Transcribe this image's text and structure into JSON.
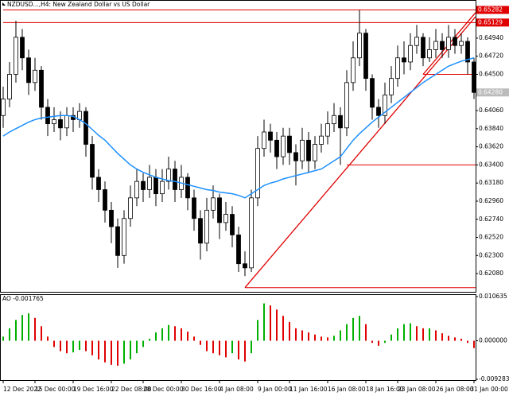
{
  "chart_data": {
    "type": "candlestick",
    "title": "NZDUSD...,H4:  New Zealand Dollar vs US Dollar",
    "categories": [
      "12 Dec 2022",
      null,
      null,
      null,
      null,
      "15 Dec 00:00",
      null,
      null,
      null,
      null,
      null,
      "19 Dec 16:00",
      null,
      null,
      null,
      null,
      null,
      "22 Dec 08:00",
      null,
      null,
      null,
      null,
      "28 Dec 00:00",
      null,
      null,
      null,
      null,
      null,
      "30 Dec 16:00",
      null,
      null,
      null,
      null,
      null,
      "4 Jan 08:00",
      null,
      null,
      null,
      null,
      null,
      "9 Jan 00:00",
      null,
      null,
      null,
      null,
      "11 Jan 16:00",
      null,
      null,
      null,
      null,
      null,
      "16 Jan 08:00",
      null,
      null,
      null,
      null,
      null,
      "18 Jan 16:00",
      null,
      null,
      null,
      null,
      "23 Jan 08:00",
      null,
      null,
      null,
      null,
      null,
      "26 Jan 08:00",
      null,
      null,
      null,
      null,
      null,
      "31 Jan 00:00"
    ],
    "open": [
      0.64,
      0.642,
      0.645,
      0.6495,
      0.647,
      0.644,
      0.6455,
      0.641,
      0.639,
      0.6395,
      0.6385,
      0.64,
      0.6395,
      0.6405,
      0.6365,
      0.6325,
      0.631,
      0.6285,
      0.6265,
      0.623,
      0.6275,
      0.63,
      0.632,
      0.631,
      0.6325,
      0.6305,
      0.632,
      0.6335,
      0.631,
      0.6325,
      0.63,
      0.6275,
      0.6245,
      0.6285,
      0.63,
      0.627,
      0.628,
      0.6255,
      0.622,
      0.6215,
      0.63,
      0.636,
      0.638,
      0.637,
      0.635,
      0.6375,
      0.6355,
      0.6345,
      0.637,
      0.6345,
      0.6365,
      0.6375,
      0.639,
      0.64,
      0.6385,
      0.644,
      0.647,
      0.65,
      0.6445,
      0.641,
      0.64,
      0.6425,
      0.6445,
      0.647,
      0.6465,
      0.6485,
      0.6495,
      0.647,
      0.648,
      0.649,
      0.648,
      0.6495,
      0.6485,
      0.649,
      0.6465
    ],
    "high": [
      0.6435,
      0.6465,
      0.6515,
      0.6505,
      0.648,
      0.647,
      0.646,
      0.642,
      0.641,
      0.6405,
      0.641,
      0.641,
      0.6415,
      0.641,
      0.6375,
      0.6335,
      0.632,
      0.6295,
      0.6275,
      0.6285,
      0.6315,
      0.6335,
      0.633,
      0.634,
      0.6335,
      0.6335,
      0.635,
      0.6345,
      0.634,
      0.633,
      0.631,
      0.6285,
      0.63,
      0.6315,
      0.6305,
      0.6295,
      0.629,
      0.6265,
      0.6235,
      0.631,
      0.6375,
      0.6395,
      0.639,
      0.638,
      0.6385,
      0.6385,
      0.6365,
      0.6385,
      0.638,
      0.6375,
      0.639,
      0.6405,
      0.6415,
      0.641,
      0.6455,
      0.649,
      0.6528,
      0.6505,
      0.645,
      0.642,
      0.644,
      0.646,
      0.6485,
      0.649,
      0.65,
      0.651,
      0.65,
      0.6495,
      0.6505,
      0.65,
      0.651,
      0.6505,
      0.65,
      0.6495,
      0.647
    ],
    "low": [
      0.6385,
      0.641,
      0.644,
      0.6455,
      0.6425,
      0.643,
      0.6395,
      0.6375,
      0.638,
      0.637,
      0.6375,
      0.638,
      0.6385,
      0.635,
      0.631,
      0.6295,
      0.627,
      0.6245,
      0.6215,
      0.622,
      0.6265,
      0.629,
      0.6295,
      0.63,
      0.629,
      0.6295,
      0.631,
      0.6295,
      0.63,
      0.6285,
      0.626,
      0.6225,
      0.6235,
      0.6275,
      0.625,
      0.626,
      0.624,
      0.621,
      0.6205,
      0.621,
      0.629,
      0.635,
      0.6355,
      0.6335,
      0.634,
      0.634,
      0.6315,
      0.6335,
      0.633,
      0.6335,
      0.6355,
      0.6365,
      0.638,
      0.634,
      0.6375,
      0.643,
      0.646,
      0.643,
      0.6395,
      0.6385,
      0.639,
      0.6415,
      0.6435,
      0.645,
      0.6455,
      0.6475,
      0.646,
      0.6465,
      0.647,
      0.647,
      0.647,
      0.6475,
      0.6475,
      0.645,
      0.642
    ],
    "close": [
      0.642,
      0.645,
      0.6495,
      0.647,
      0.644,
      0.6455,
      0.641,
      0.639,
      0.6395,
      0.6385,
      0.64,
      0.6395,
      0.6405,
      0.6365,
      0.6325,
      0.631,
      0.6285,
      0.6265,
      0.623,
      0.6275,
      0.63,
      0.632,
      0.631,
      0.6325,
      0.6305,
      0.632,
      0.6335,
      0.631,
      0.6325,
      0.63,
      0.6275,
      0.6245,
      0.6285,
      0.63,
      0.627,
      0.628,
      0.6255,
      0.622,
      0.6215,
      0.63,
      0.636,
      0.638,
      0.637,
      0.635,
      0.6375,
      0.6355,
      0.6345,
      0.637,
      0.6345,
      0.6365,
      0.6375,
      0.639,
      0.64,
      0.6385,
      0.644,
      0.647,
      0.65,
      0.6445,
      0.641,
      0.64,
      0.6425,
      0.6445,
      0.647,
      0.6465,
      0.6485,
      0.6495,
      0.647,
      0.648,
      0.649,
      0.648,
      0.6495,
      0.6485,
      0.649,
      0.6465,
      0.6428
    ],
    "last_price_label": "0.64280",
    "ma": {
      "color": "#1e90ff",
      "values": [
        0.6375,
        0.638,
        0.6384,
        0.6388,
        0.6392,
        0.6395,
        0.6397,
        0.6398,
        0.6399,
        0.64,
        0.64,
        0.6399,
        0.6395,
        0.639,
        0.6383,
        0.6376,
        0.637,
        0.6362,
        0.6354,
        0.6347,
        0.634,
        0.6335,
        0.6331,
        0.6328,
        0.6325,
        0.6323,
        0.6321,
        0.632,
        0.6318,
        0.6316,
        0.6314,
        0.6312,
        0.631,
        0.6309,
        0.6307,
        0.6306,
        0.6305,
        0.6303,
        0.63,
        0.6305,
        0.631,
        0.6315,
        0.6318,
        0.632,
        0.6323,
        0.6325,
        0.6327,
        0.6329,
        0.6331,
        0.6333,
        0.6335,
        0.634,
        0.6345,
        0.635,
        0.636,
        0.637,
        0.6378,
        0.6385,
        0.6392,
        0.6398,
        0.6404,
        0.641,
        0.6416,
        0.6422,
        0.6428,
        0.6434,
        0.644,
        0.6445,
        0.645,
        0.6455,
        0.646,
        0.6463,
        0.6466,
        0.6468,
        0.647
      ]
    },
    "ylim": [
      0.61859,
      0.65393
    ],
    "yticks": [
      {
        "value": 0.6208,
        "label": "0.62080"
      },
      {
        "value": 0.623,
        "label": "0.62300"
      },
      {
        "value": 0.6252,
        "label": "0.62520"
      },
      {
        "value": 0.6274,
        "label": "0.62740"
      },
      {
        "value": 0.6296,
        "label": "0.62960"
      },
      {
        "value": 0.6318,
        "label": "0.63180"
      },
      {
        "value": 0.634,
        "label": "0.63400"
      },
      {
        "value": 0.6362,
        "label": "0.63620"
      },
      {
        "value": 0.6384,
        "label": "0.63840"
      },
      {
        "value": 0.6406,
        "label": "0.64060"
      },
      {
        "value": 0.645,
        "label": "0.64500"
      },
      {
        "value": 0.6472,
        "label": "0.64720"
      },
      {
        "value": 0.6494,
        "label": "0.64940"
      }
    ],
    "levels": [
      {
        "value": 0.65282,
        "label": "0.65282",
        "from": 0
      },
      {
        "value": 0.65129,
        "label": "0.65129",
        "from": 0
      },
      {
        "value": 0.645,
        "from": 66
      },
      {
        "value": 0.634,
        "from": 54
      },
      {
        "value": 0.6191,
        "from": 38
      }
    ],
    "trendlines": [
      {
        "from": [
          38,
          0.6191
        ],
        "to": [
          74.25,
          0.652
        ]
      },
      {
        "from": [
          66,
          0.645
        ],
        "to": [
          74.25,
          0.6525
        ]
      }
    ],
    "line_color": "#e00000",
    "ao": {
      "title": "AO -0.001765",
      "up_color": "#00b000",
      "down_color": "#e00000",
      "values": [
        0.001,
        0.003,
        0.005,
        0.0062,
        0.0066,
        0.0055,
        0.0035,
        0.001,
        -0.0015,
        -0.0025,
        -0.003,
        -0.0028,
        -0.0022,
        -0.0025,
        -0.0035,
        -0.0045,
        -0.0052,
        -0.0058,
        -0.006,
        -0.0055,
        -0.0045,
        -0.003,
        -0.0015,
        0.0005,
        0.002,
        0.003,
        0.0038,
        0.0035,
        0.003,
        0.0022,
        0.001,
        -0.001,
        -0.0025,
        -0.003,
        -0.0035,
        -0.004,
        -0.003,
        -0.0045,
        -0.005,
        -0.003,
        0.005,
        0.009,
        0.0085,
        0.0075,
        0.006,
        0.0045,
        0.003,
        0.0025,
        0.002,
        0.0015,
        0.001,
        0.0008,
        0.0012,
        0.0025,
        0.004,
        0.0055,
        0.006,
        0.004,
        -0.0005,
        -0.0012,
        -0.0005,
        0.0015,
        0.003,
        0.004,
        0.0042,
        0.0035,
        0.003,
        0.003,
        0.0025,
        0.0018,
        0.0012,
        0.0008,
        0.0005,
        -0.0005,
        -0.001765
      ],
      "ylim": [
        -0.009283,
        0.010635
      ],
      "yticks": [
        {
          "value": 0.010635,
          "label": "0.010635"
        },
        {
          "value": 0,
          "label": "0.000000"
        },
        {
          "value": -0.009283,
          "label": "-0.009283"
        }
      ]
    }
  }
}
